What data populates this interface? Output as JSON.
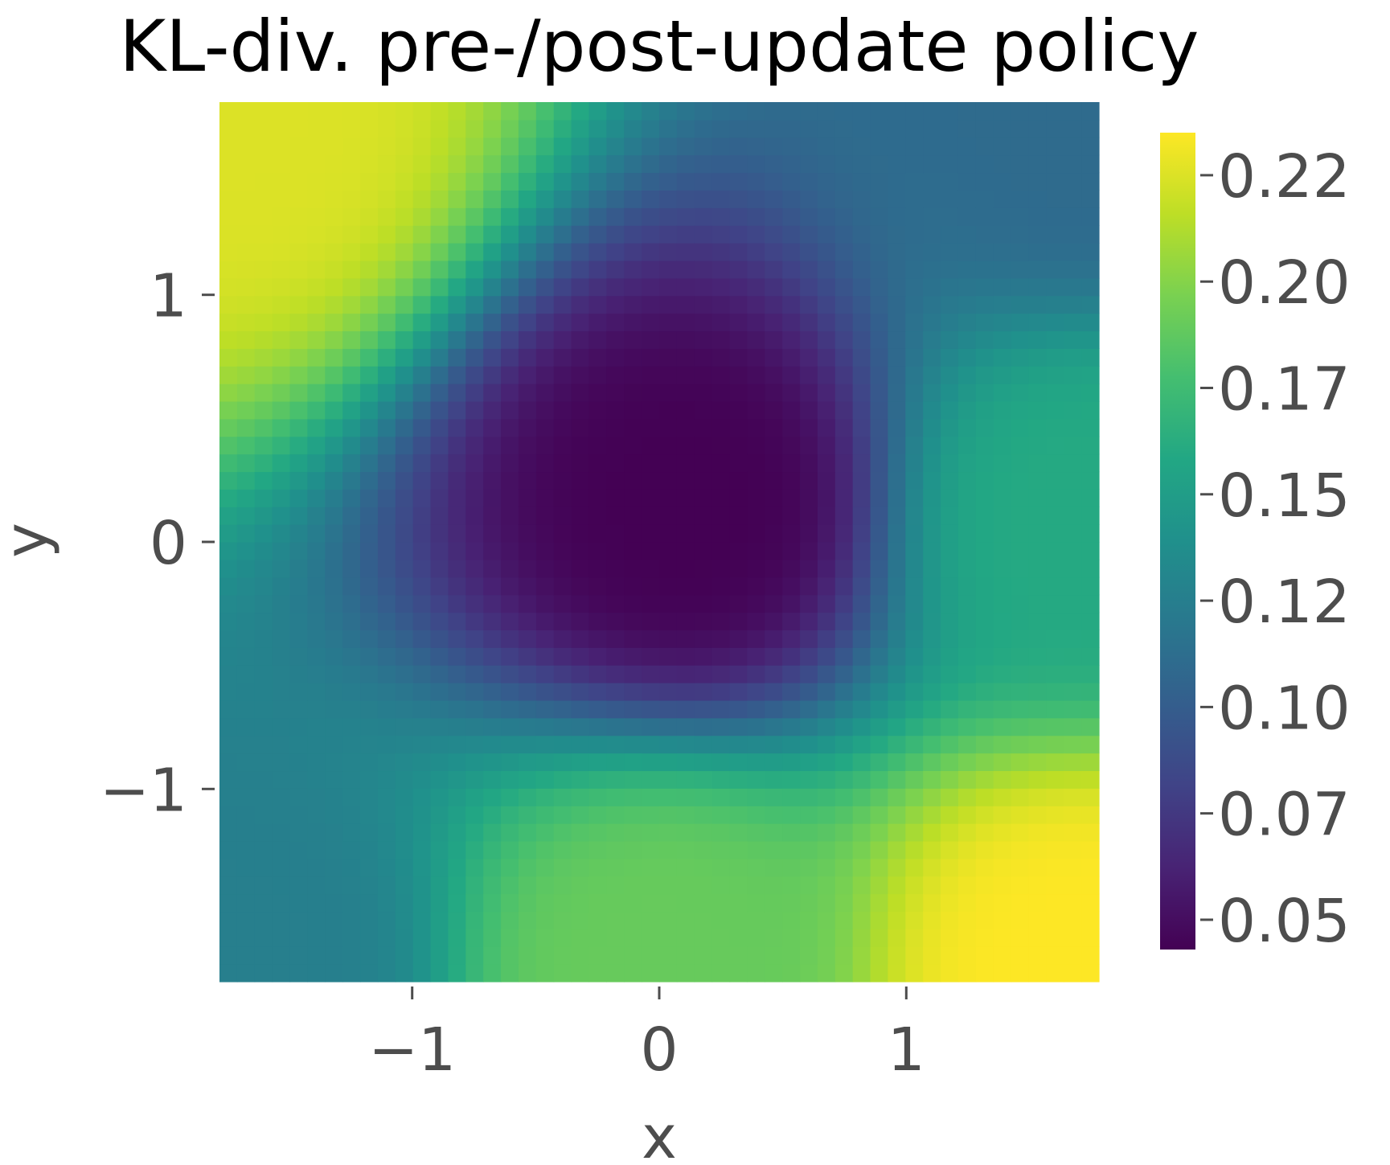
{
  "chart_data": {
    "type": "heatmap",
    "title": "KL-div. pre-/post-update policy",
    "xlabel": "x",
    "ylabel": "y",
    "xlim": [
      -1.78,
      1.78
    ],
    "ylim": [
      -1.78,
      1.78
    ],
    "x_ticks": [
      -1,
      0,
      1
    ],
    "x_tick_labels": [
      "−1",
      "0",
      "1"
    ],
    "y_ticks": [
      -1,
      0,
      1
    ],
    "y_tick_labels": [
      "−1",
      "0",
      "1"
    ],
    "grid_resolution": 50,
    "colormap": "viridis",
    "colorbar": {
      "min": 0.043,
      "max": 0.235,
      "ticks": [
        0.05,
        0.075,
        0.1,
        0.125,
        0.15,
        0.175,
        0.2,
        0.225
      ],
      "tick_labels": [
        "0.05",
        "0.07",
        "0.10",
        "0.12",
        "0.15",
        "0.17",
        "0.20",
        "0.22"
      ]
    },
    "field_description_points": [
      {
        "x": -1.7,
        "y": 1.7,
        "value": 0.225
      },
      {
        "x": 1.7,
        "y": -1.7,
        "value": 0.235
      },
      {
        "x": 1.7,
        "y": 1.7,
        "value": 0.11
      },
      {
        "x": -1.7,
        "y": -1.7,
        "value": 0.125
      },
      {
        "x": 0.1,
        "y": 0.15,
        "value": 0.043
      },
      {
        "x": 1.75,
        "y": 0.1,
        "value": 0.16
      },
      {
        "x": 0.0,
        "y": -1.7,
        "value": 0.19
      }
    ]
  }
}
